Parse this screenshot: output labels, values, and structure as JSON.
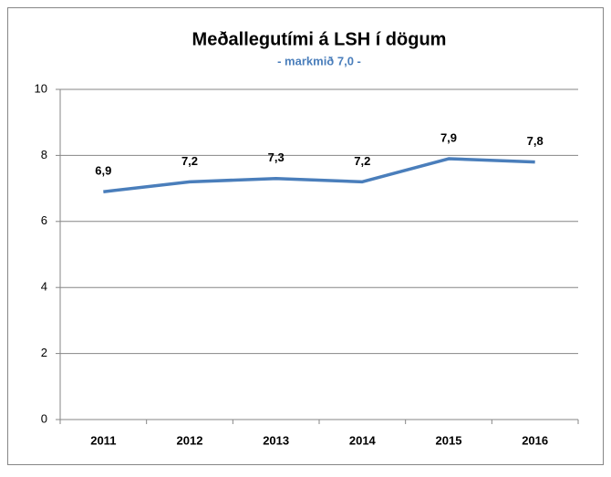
{
  "chart_data": {
    "type": "line",
    "title": "Meðallegutími á LSH í dögum",
    "subtitle": "- markmið 7,0 -",
    "categories": [
      "2011",
      "2012",
      "2013",
      "2014",
      "2015",
      "2016"
    ],
    "series": [
      {
        "name": "Meðallegutími",
        "color": "#4a7ebb",
        "values": [
          6.9,
          7.2,
          7.3,
          7.2,
          7.9,
          7.8
        ],
        "value_labels": [
          "6,9",
          "7,2",
          "7,3",
          "7,2",
          "7,9",
          "7,8"
        ]
      }
    ],
    "ylim": [
      0,
      10
    ],
    "yticks": [
      0,
      2,
      4,
      6,
      8,
      10
    ],
    "grid": true
  }
}
